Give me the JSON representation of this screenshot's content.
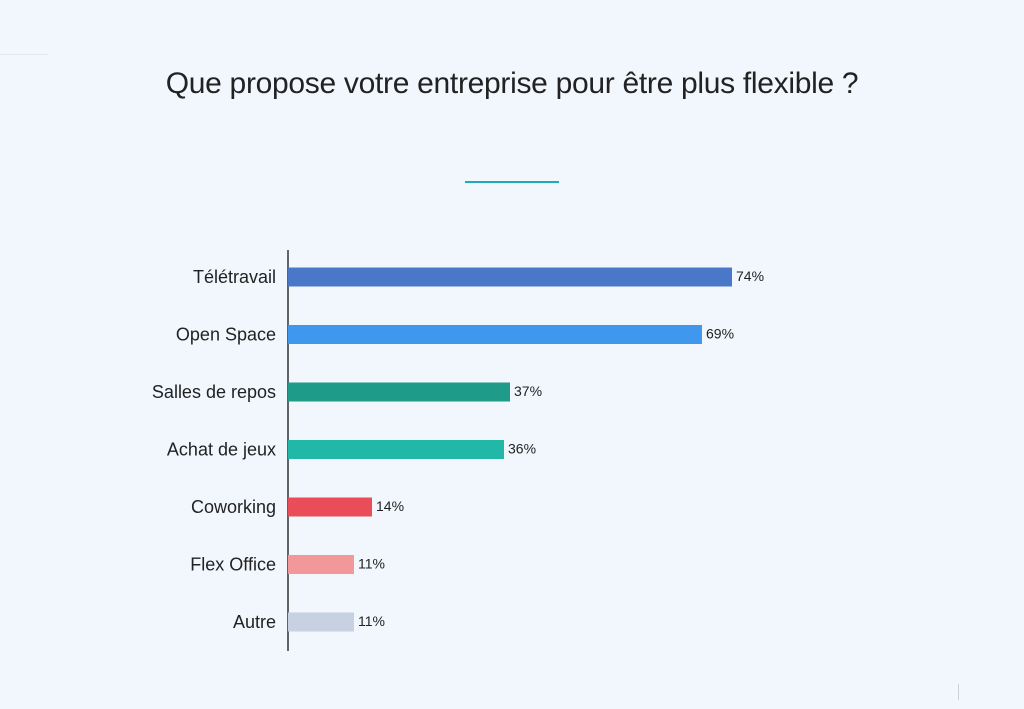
{
  "chart_data": {
    "type": "bar",
    "orientation": "horizontal",
    "title": "Que propose votre entreprise pour être plus flexible ?",
    "categories": [
      "Télétravail",
      "Open Space",
      "Salles de repos",
      "Achat de jeux",
      "Coworking",
      "Flex Office",
      "Autre"
    ],
    "values": [
      74,
      69,
      37,
      36,
      14,
      11,
      11
    ],
    "value_labels": [
      "74%",
      "69%",
      "37%",
      "36%",
      "14%",
      "11%",
      "11%"
    ],
    "colors": [
      "#4a78c9",
      "#3f98ee",
      "#1f9b8a",
      "#22b8a7",
      "#e94d58",
      "#f29899",
      "#c8d1e2"
    ],
    "unit": "%",
    "xlim": [
      0,
      100
    ],
    "grid": false,
    "legend": "none",
    "xlabel": "",
    "ylabel": ""
  },
  "decor": {
    "title_underline_color": "#1faab8",
    "background": "#f1f7fd"
  }
}
